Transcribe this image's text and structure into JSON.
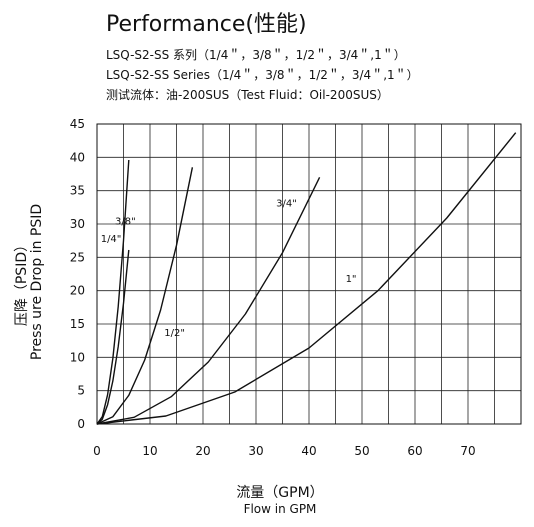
{
  "title": "Performance(性能)",
  "subtitle_1": "LSQ-S2-SS 系列（1/4＂，3/8＂，1/2＂，3/4＂,1＂）",
  "subtitle_2": "LSQ-S2-SS Series（1/4＂，3/8＂，1/2＂，3/4＂,1＂）",
  "subtitle_3": "测试流体：油-200SUS（Test Fluid：Oil-200SUS）",
  "chart_data": {
    "type": "line",
    "xlabel": "流量（GPM）",
    "xlabel_en": "Flow in GPM",
    "ylabel": "压降（PSID）",
    "ylabel_en": "Press ure Drop in PSID",
    "xlim": [
      0,
      80
    ],
    "ylim": [
      0,
      45
    ],
    "x_ticks": [
      0,
      10,
      20,
      30,
      40,
      50,
      60,
      70
    ],
    "y_ticks": [
      0,
      5,
      10,
      15,
      20,
      25,
      30,
      35,
      40,
      45
    ],
    "grid": true,
    "series": [
      {
        "name": "1/4\"",
        "x": [
          0,
          1,
          2,
          3,
          4,
          5,
          6
        ],
        "y": [
          0,
          1.1,
          4.4,
          9.9,
          17.6,
          27.5,
          39.6
        ]
      },
      {
        "name": "3/8\"",
        "x": [
          0,
          1,
          2,
          3,
          4,
          5,
          6
        ],
        "y": [
          0,
          0.7,
          2.9,
          6.5,
          11.6,
          18.1,
          26.1
        ]
      },
      {
        "name": "1/2\"",
        "x": [
          0,
          3,
          6,
          9,
          12,
          15,
          18
        ],
        "y": [
          0,
          1.1,
          4.3,
          9.6,
          17.1,
          26.8,
          38.5
        ]
      },
      {
        "name": "3/4\"",
        "x": [
          0,
          7,
          14,
          21,
          28,
          35,
          42
        ],
        "y": [
          0,
          1.0,
          4.1,
          9.3,
          16.5,
          25.7,
          37.0
        ]
      },
      {
        "name": "1\"",
        "x": [
          0,
          13,
          26,
          40,
          53,
          66,
          79
        ],
        "y": [
          0,
          1.2,
          4.8,
          11.4,
          20.0,
          30.9,
          43.7
        ]
      }
    ]
  }
}
